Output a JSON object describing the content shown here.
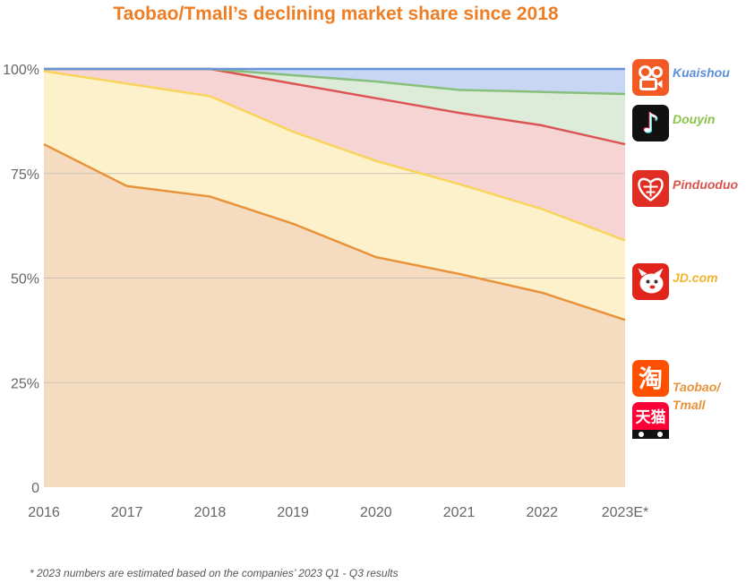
{
  "title": "Taobao/Tmall’s declining market share since 2018",
  "footnote": "* 2023 numbers are estimated based on the companies’ 2023 Q1 - Q3 results",
  "chart_data": {
    "type": "area",
    "stacked": true,
    "categories": [
      "2016",
      "2017",
      "2018",
      "2019",
      "2020",
      "2021",
      "2022",
      "2023E*"
    ],
    "ylim": [
      0,
      100
    ],
    "yticks": [
      0,
      25,
      50,
      75,
      100
    ],
    "ytick_labels": [
      "0",
      "25%",
      "50%",
      "75%",
      "100%"
    ],
    "grid": true,
    "legend_position": "right",
    "series": [
      {
        "name": "Taobao/ Tmall",
        "label_lines": [
          "Taobao/",
          "Tmall"
        ],
        "fill": "#f5dcc0",
        "line": "#e8923a",
        "text": "#e8923a",
        "icons": [
          "taobao-icon",
          "tmall-icon"
        ],
        "values": [
          82,
          72,
          69.5,
          63,
          55,
          51,
          46.5,
          40
        ]
      },
      {
        "name": "JD.com",
        "label_lines": [
          "JD.com"
        ],
        "fill": "#fdf1cc",
        "line": "#f9d45a",
        "text": "#f0b429",
        "icons": [
          "jd-icon"
        ],
        "values": [
          17.5,
          24.5,
          24,
          22,
          23,
          21.5,
          20,
          19
        ]
      },
      {
        "name": "Pinduoduo",
        "label_lines": [
          "Pinduoduo"
        ],
        "fill": "#f6d4d4",
        "line": "#dc5555",
        "text": "#d9534f",
        "icons": [
          "pinduoduo-icon"
        ],
        "values": [
          0.5,
          3.5,
          6.5,
          11.5,
          15,
          17,
          20,
          23
        ]
      },
      {
        "name": "Douyin",
        "label_lines": [
          "Douyin"
        ],
        "fill": "#dcecd8",
        "line": "#86c07a",
        "text": "#8bc34a",
        "icons": [
          "douyin-icon"
        ],
        "values": [
          0,
          0,
          0,
          2,
          4,
          5.5,
          8,
          12
        ]
      },
      {
        "name": "Kuaishou",
        "label_lines": [
          "Kuaishou"
        ],
        "fill": "#c6d6f3",
        "line": "#6a93d8",
        "text": "#5b8fd6",
        "icons": [
          "kuaishou-icon"
        ],
        "values": [
          0,
          0,
          0,
          1.5,
          3,
          5,
          5.5,
          6
        ]
      }
    ],
    "icon_glyphs": {
      "taobao": "淘",
      "tmall": "天猫",
      "douyin": "♪"
    }
  }
}
